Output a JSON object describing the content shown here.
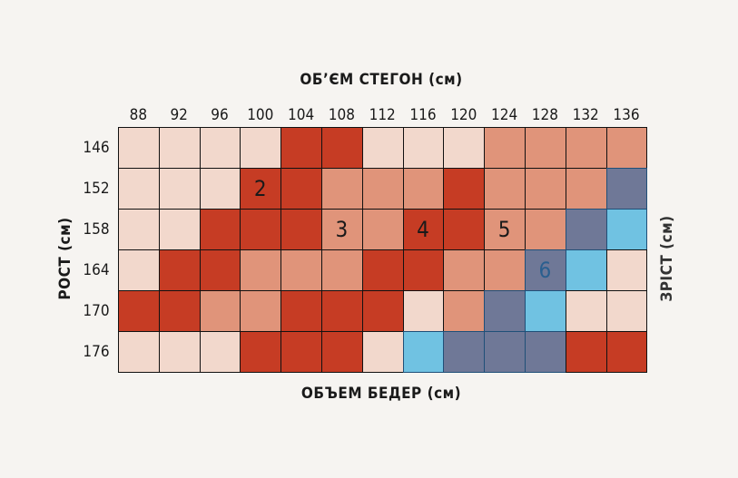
{
  "chart_data": {
    "type": "heatmap",
    "title_top": "ОБ’ЄМ СТЕГОН (см)",
    "title_bottom": "ОБЪЕМ БЕДЕР (см)",
    "ylabel_left": "РОСТ (см)",
    "ylabel_right": "ЗРІСТ (см)",
    "x": [
      "88",
      "92",
      "96",
      "100",
      "104",
      "108",
      "112",
      "116",
      "120",
      "124",
      "128",
      "132",
      "136"
    ],
    "y": [
      "146",
      "152",
      "158",
      "164",
      "170",
      "176"
    ],
    "colors": {
      "L": "#f2d8cc",
      "M": "#e0947a",
      "D": "#c63c24",
      "S": "#6f7897",
      "C": "#70c2e2"
    },
    "cells": [
      [
        "L",
        "L",
        "L",
        "L",
        "D",
        "D",
        "L",
        "L",
        "L",
        "M",
        "M",
        "M",
        "M"
      ],
      [
        "L",
        "L",
        "L",
        "D",
        "D",
        "M",
        "M",
        "M",
        "D",
        "M",
        "M",
        "M",
        "S"
      ],
      [
        "L",
        "L",
        "D",
        "D",
        "D",
        "M",
        "M",
        "D",
        "D",
        "M",
        "M",
        "S",
        "C"
      ],
      [
        "L",
        "D",
        "D",
        "M",
        "M",
        "M",
        "D",
        "D",
        "M",
        "M",
        "S",
        "C",
        "L"
      ],
      [
        "D",
        "D",
        "M",
        "M",
        "D",
        "D",
        "D",
        "L",
        "M",
        "S",
        "C",
        "L",
        "L"
      ],
      [
        "L",
        "L",
        "L",
        "D",
        "D",
        "D",
        "L",
        "C",
        "S",
        "S",
        "S",
        "D",
        "D"
      ]
    ],
    "annotations": [
      {
        "text": "2",
        "x": "100",
        "y": "152",
        "color": "#1a1a1a"
      },
      {
        "text": "3",
        "x": "108",
        "y": "158",
        "color": "#1a1a1a"
      },
      {
        "text": "4",
        "x": "116",
        "y": "158",
        "color": "#1a1a1a"
      },
      {
        "text": "5",
        "x": "124",
        "y": "158",
        "color": "#1a1a1a"
      },
      {
        "text": "6",
        "x": "128",
        "y": "164",
        "color": "#2a5f8f"
      }
    ]
  }
}
